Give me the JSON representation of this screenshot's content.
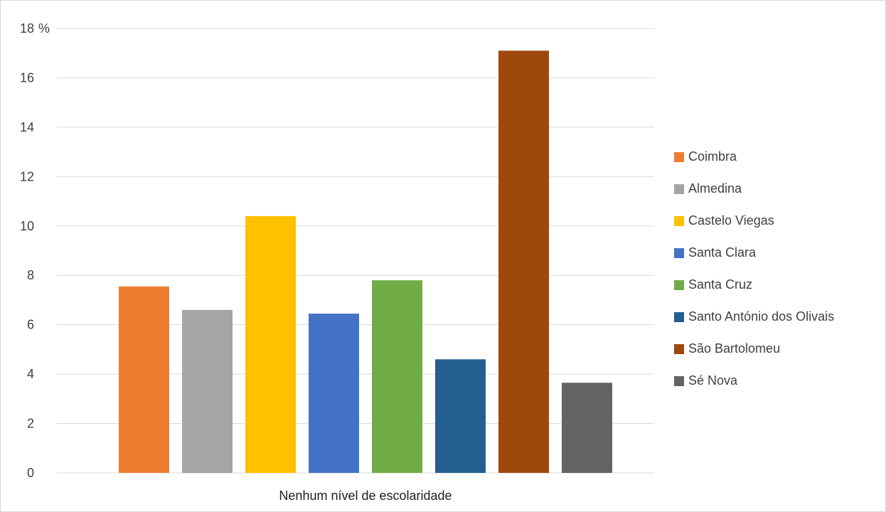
{
  "chart_data": {
    "type": "bar",
    "categories": [
      "Nenhum nível de escolaridade"
    ],
    "y_unit": "%",
    "ylim": [
      0,
      18
    ],
    "yticks": [
      0,
      2,
      4,
      6,
      8,
      10,
      12,
      14,
      16,
      18
    ],
    "grid": true,
    "legend_position": "right",
    "series": [
      {
        "name": "Coimbra",
        "values": [
          7.55
        ],
        "color": "#ED7D31"
      },
      {
        "name": "Almedina",
        "values": [
          6.6
        ],
        "color": "#A5A5A5"
      },
      {
        "name": "Castelo Viegas",
        "values": [
          10.4
        ],
        "color": "#FFC000"
      },
      {
        "name": "Santa Clara",
        "values": [
          6.45
        ],
        "color": "#4472C4"
      },
      {
        "name": "Santa Cruz",
        "values": [
          7.8
        ],
        "color": "#70AD47"
      },
      {
        "name": "Santo António dos Olivais",
        "values": [
          4.6
        ],
        "color": "#255E91"
      },
      {
        "name": "São Bartolomeu",
        "values": [
          17.1
        ],
        "color": "#9E480E"
      },
      {
        "name": "Sé Nova",
        "values": [
          3.65
        ],
        "color": "#636363"
      }
    ]
  }
}
